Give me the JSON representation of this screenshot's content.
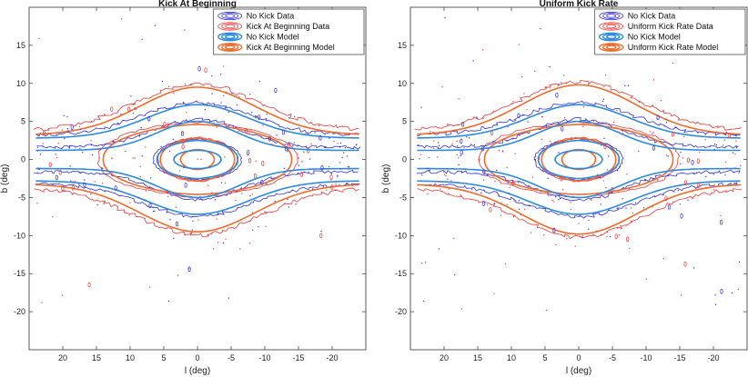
{
  "chart_data": [
    {
      "type": "contour",
      "title": "Kick At Beginning",
      "xlabel": "l (deg)",
      "ylabel": "b (deg)",
      "xlim": [
        25,
        -25
      ],
      "ylim": [
        -25,
        20
      ],
      "xticks": [
        20,
        15,
        10,
        5,
        0,
        -5,
        -10,
        -15,
        -20
      ],
      "yticks": [
        15,
        10,
        5,
        0,
        -5,
        -10,
        -15,
        -20
      ],
      "legend_position": "top-right",
      "colors": {
        "data_blue": "#3333e6",
        "data_red": "#ee3a3a",
        "model_blue": "#2c8be0",
        "model_orange": "#ef6b2a"
      },
      "legend": [
        "No Kick Data",
        "Kick At Beginning Data",
        "No Kick Model",
        "Kick At Beginning Model"
      ],
      "series": [
        {
          "name": "No Kick Model",
          "levels": [
            {
              "core_halfwidth_l": 24,
              "wing_halfheight_b": 1.2,
              "center_halfheight_b": 5
            },
            {
              "core_halfwidth_l": 24,
              "wing_halfheight_b": 2.8,
              "center_halfheight_b": 7.2
            },
            {
              "core_halfwidth_l": 6,
              "center_halfheight_b": 2.5
            },
            {
              "core_halfwidth_l": 3.5,
              "center_halfheight_b": 1.2
            }
          ]
        },
        {
          "name": "Kick At Beginning Model",
          "levels": [
            {
              "core_halfwidth_l": 24,
              "wing_halfheight_b": 3.2,
              "center_halfheight_b": 9.5
            },
            {
              "core_halfwidth_l": 14,
              "center_halfheight_b": 4.6
            },
            {
              "core_halfwidth_l": 5.5,
              "center_halfheight_b": 2.8
            },
            {
              "core_halfwidth_l": 2.5,
              "center_halfheight_b": 1.3
            }
          ]
        }
      ]
    },
    {
      "type": "contour",
      "title": "Uniform Kick Rate",
      "xlabel": "l (deg)",
      "ylabel": "b (deg)",
      "xlim": [
        25,
        -25
      ],
      "ylim": [
        -25,
        20
      ],
      "xticks": [
        20,
        15,
        10,
        5,
        0,
        -5,
        -10,
        -15,
        -20
      ],
      "yticks": [
        15,
        10,
        5,
        0,
        -5,
        -10,
        -15,
        -20
      ],
      "legend_position": "top-right",
      "colors": {
        "data_blue": "#3333e6",
        "data_red": "#ee3a3a",
        "model_blue": "#2c8be0",
        "model_orange": "#ef6b2a"
      },
      "legend": [
        "No Kick Data",
        "Uniform Kick Rate Data",
        "No Kick Model",
        "Uniform Kick Rate Model"
      ],
      "series": [
        {
          "name": "No Kick Model",
          "levels": [
            {
              "core_halfwidth_l": 24,
              "wing_halfheight_b": 1.2,
              "center_halfheight_b": 5
            },
            {
              "core_halfwidth_l": 24,
              "wing_halfheight_b": 2.8,
              "center_halfheight_b": 7.2
            },
            {
              "core_halfwidth_l": 6,
              "center_halfheight_b": 2.5
            },
            {
              "core_halfwidth_l": 3.5,
              "center_halfheight_b": 1.2
            }
          ]
        },
        {
          "name": "Uniform Kick Rate Model",
          "levels": [
            {
              "core_halfwidth_l": 24,
              "wing_halfheight_b": 3.2,
              "center_halfheight_b": 9.8
            },
            {
              "core_halfwidth_l": 14,
              "center_halfheight_b": 4.6
            },
            {
              "core_halfwidth_l": 5.5,
              "center_halfheight_b": 2.8
            },
            {
              "core_halfwidth_l": 2.5,
              "center_halfheight_b": 1.3
            }
          ]
        }
      ]
    }
  ]
}
